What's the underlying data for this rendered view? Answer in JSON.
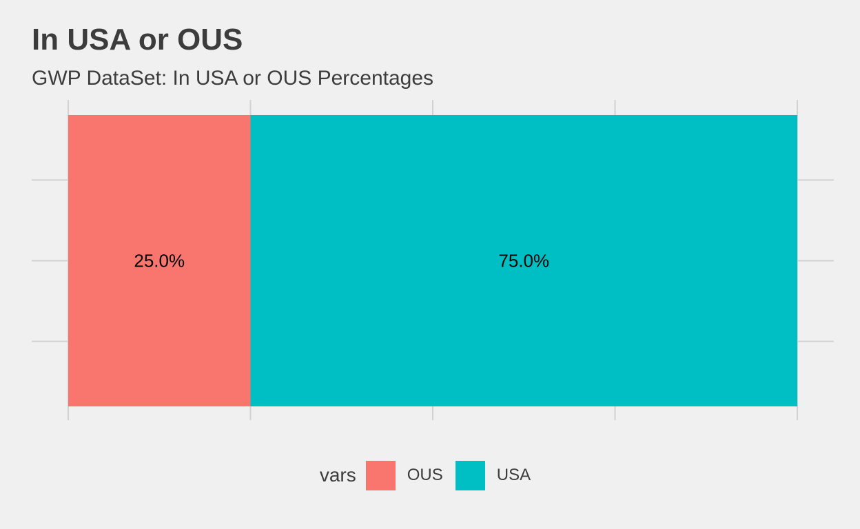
{
  "chart_data": {
    "type": "bar",
    "orientation": "horizontal",
    "stacked": true,
    "title": "In USA or OUS",
    "subtitle": "GWP DataSet: In USA or OUS Percentages",
    "xlabel": "",
    "ylabel": "",
    "xlim": [
      0,
      1
    ],
    "grid": true,
    "legend_position": "bottom",
    "legend_title": "vars",
    "series": [
      {
        "name": "OUS",
        "values": [
          0.25
        ],
        "label": "25.0%",
        "color": "#f8766d"
      },
      {
        "name": "USA",
        "values": [
          0.75
        ],
        "label": "75.0%",
        "color": "#00bfc4"
      }
    ]
  }
}
